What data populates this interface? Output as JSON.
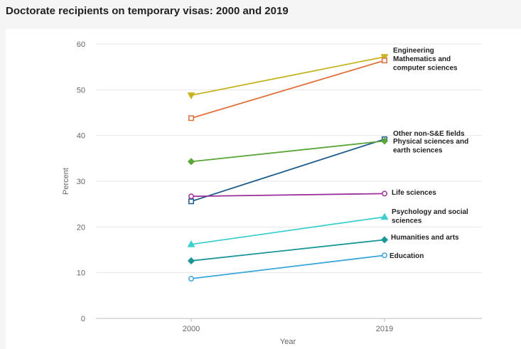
{
  "header": {
    "title": "Doctorate recipients on temporary visas: 2000 and 2019"
  },
  "chart_data": {
    "type": "line",
    "title": "Doctorate recipients on temporary visas: 2000 and 2019",
    "xlabel": "Year",
    "ylabel": "Percent",
    "x": [
      "2000",
      "2019"
    ],
    "ylim": [
      0,
      60
    ],
    "yticks": [
      0,
      10,
      20,
      30,
      40,
      50,
      60
    ],
    "grid": true,
    "series": [
      {
        "name": "Engineering",
        "values": [
          48.8,
          57.2
        ],
        "color": "#c7b420",
        "marker": "triangle-down"
      },
      {
        "name": "Mathematics and computer sciences",
        "values": [
          43.8,
          56.4
        ],
        "color": "#e0703a",
        "marker": "square"
      },
      {
        "name": "Other non-S&E fields",
        "values": [
          25.6,
          39.2
        ],
        "color": "#1a5a8c",
        "marker": "square"
      },
      {
        "name": "Physical sciences and earth sciences",
        "values": [
          34.3,
          38.8
        ],
        "color": "#5ca53a",
        "marker": "diamond"
      },
      {
        "name": "Life sciences",
        "values": [
          26.7,
          27.3
        ],
        "color": "#9b2f9b",
        "marker": "circle"
      },
      {
        "name": "Psychology and social sciences",
        "values": [
          16.2,
          22.2
        ],
        "color": "#3fcfcf",
        "marker": "triangle"
      },
      {
        "name": "Humanities and arts",
        "values": [
          12.6,
          17.2
        ],
        "color": "#1a9696",
        "marker": "diamond"
      },
      {
        "name": "Education",
        "values": [
          8.7,
          13.8
        ],
        "color": "#3aa6dc",
        "marker": "circle"
      }
    ],
    "labels": [
      {
        "lines": [
          "Engineering"
        ]
      },
      {
        "lines": [
          "Mathematics and",
          "computer sciences"
        ]
      },
      {
        "lines": [
          "Other non-S&E fields"
        ]
      },
      {
        "lines": [
          "Physical sciences and",
          "earth sciences"
        ]
      },
      {
        "lines": [
          "Life sciences"
        ]
      },
      {
        "lines": [
          "Psychology and social",
          "sciences"
        ]
      },
      {
        "lines": [
          "Humanities and arts"
        ]
      },
      {
        "lines": [
          "Education"
        ]
      }
    ]
  }
}
